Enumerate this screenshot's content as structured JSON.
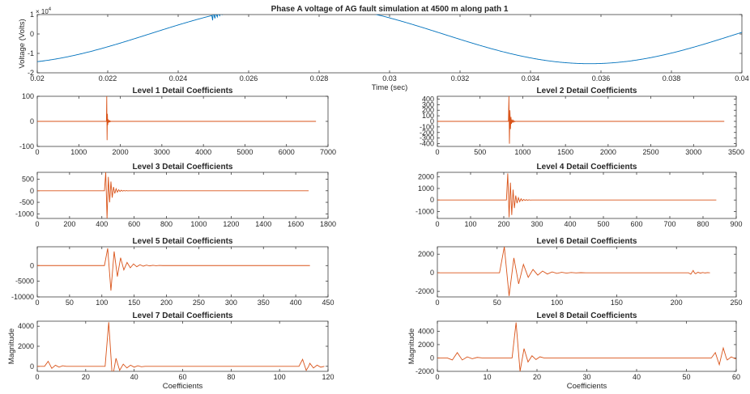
{
  "colors": {
    "voltage": "#0072BD",
    "detail": "#D95319",
    "axis": "#262626"
  },
  "chart_data": [
    {
      "type": "line",
      "title": "Phase A voltage of AG fault simulation at 4500 m along path 1",
      "xlabel": "Time (sec)",
      "ylabel": "Voltage (Volts)",
      "multiplier": "× 10",
      "multiplier_exp": "4",
      "xlim": [
        0.02,
        0.04
      ],
      "ylim": [
        -2,
        1
      ],
      "x_ticks": [
        0.02,
        0.022,
        0.024,
        0.026,
        0.028,
        0.03,
        0.032,
        0.034,
        0.036,
        0.038,
        0.04
      ],
      "x_tick_labels": [
        "0.02",
        "0.022",
        "0.024",
        "0.026",
        "0.028",
        "0.03",
        "0.032",
        "0.034",
        "0.036",
        "0.038",
        "0.04"
      ],
      "y_ticks": [
        -2,
        -1,
        0,
        1
      ],
      "y_tick_labels": [
        "-2",
        "-1",
        "0",
        "1"
      ],
      "wave": {
        "amplitude": 1.53,
        "x_peak": 0.02735,
        "period": 0.01667
      },
      "transient": {
        "x_start": 0.02497,
        "x_end": 0.02575,
        "amplitude": 0.35,
        "frequency": 15000
      },
      "color": "#0072BD"
    },
    {
      "type": "line",
      "title": "Level 1 Detail Coefficients",
      "xlabel": "",
      "ylabel": "",
      "xlim": [
        0,
        7000
      ],
      "ylim": [
        -100,
        100
      ],
      "x_ticks": [
        0,
        1000,
        2000,
        3000,
        4000,
        5000,
        6000,
        7000
      ],
      "x_tick_labels": [
        "0",
        "1000",
        "2000",
        "3000",
        "4000",
        "5000",
        "6000",
        "7000"
      ],
      "y_ticks": [
        -100,
        0,
        100
      ],
      "y_tick_labels": [
        "-100",
        "0",
        "100"
      ],
      "length": 6710,
      "bursts": [
        {
          "x0": 1665,
          "peaks": [
            100,
            -75,
            30,
            -15
          ],
          "decay": 3,
          "period": 8
        }
      ],
      "color": "#D95319"
    },
    {
      "type": "line",
      "title": "Level 2 Detail Coefficients",
      "xlabel": "",
      "ylabel": "",
      "xlim": [
        0,
        3500
      ],
      "ylim": [
        -450,
        450
      ],
      "x_ticks": [
        0,
        500,
        1000,
        1500,
        2000,
        2500,
        3000,
        3500
      ],
      "x_tick_labels": [
        "0",
        "500",
        "1000",
        "1500",
        "2000",
        "2500",
        "3000",
        "3500"
      ],
      "y_ticks": [
        -400,
        -300,
        -200,
        -100,
        0,
        100,
        200,
        300,
        400
      ],
      "y_tick_labels": [
        "-400",
        "-300",
        "-200",
        "-100",
        "0",
        "100",
        "200",
        "300",
        "400"
      ],
      "length": 3360,
      "bursts": [
        {
          "x0": 832,
          "peaks": [
            450,
            -400,
            200,
            -140,
            80
          ],
          "decay": 4,
          "period": 6
        }
      ],
      "color": "#D95319"
    },
    {
      "type": "line",
      "title": "Level 3 Detail Coefficients",
      "xlabel": "",
      "ylabel": "",
      "xlim": [
        0,
        1800
      ],
      "ylim": [
        -1200,
        800
      ],
      "x_ticks": [
        0,
        200,
        400,
        600,
        800,
        1000,
        1200,
        1400,
        1600,
        1800
      ],
      "x_tick_labels": [
        "0",
        "200",
        "400",
        "600",
        "800",
        "1000",
        "1200",
        "1400",
        "1600",
        "1800"
      ],
      "y_ticks": [
        -1000,
        -500,
        0,
        500
      ],
      "y_tick_labels": [
        "-1000",
        "-500",
        "0",
        "500"
      ],
      "length": 1680,
      "bursts": [
        {
          "x0": 416,
          "peaks": [
            800,
            -1200,
            600,
            -500,
            400,
            -300
          ],
          "decay": 25,
          "period": 8
        }
      ],
      "color": "#D95319"
    },
    {
      "type": "line",
      "title": "Level 4 Detail Coefficients",
      "xlabel": "",
      "ylabel": "",
      "xlim": [
        0,
        900
      ],
      "ylim": [
        -1600,
        2400
      ],
      "x_ticks": [
        0,
        100,
        200,
        300,
        400,
        500,
        600,
        700,
        800,
        900
      ],
      "x_tick_labels": [
        "0",
        "100",
        "200",
        "300",
        "400",
        "500",
        "600",
        "700",
        "800",
        "900"
      ],
      "y_ticks": [
        -1000,
        0,
        1000,
        2000
      ],
      "y_tick_labels": [
        "-1000",
        "0",
        "1000",
        "2000"
      ],
      "length": 840,
      "bursts": [
        {
          "x0": 208,
          "peaks": [
            2300,
            -1500,
            1500,
            -1300,
            900,
            -700
          ],
          "decay": 16,
          "period": 4
        }
      ],
      "color": "#D95319"
    },
    {
      "type": "line",
      "title": "Level 5 Detail Coefficients",
      "xlabel": "",
      "ylabel": "",
      "xlim": [
        0,
        450
      ],
      "ylim": [
        -10000,
        6000
      ],
      "x_ticks": [
        0,
        50,
        100,
        150,
        200,
        250,
        300,
        350,
        400,
        450
      ],
      "x_tick_labels": [
        "0",
        "50",
        "100",
        "150",
        "200",
        "250",
        "300",
        "350",
        "400",
        "450"
      ],
      "y_ticks": [
        -10000,
        -5000,
        0
      ],
      "y_tick_labels": [
        "-10000",
        "-5000",
        "0"
      ],
      "length": 422,
      "bursts": [
        {
          "x0": 104,
          "peaks": [
            5500,
            -8000,
            4500,
            -3500,
            2500
          ],
          "decay": 14,
          "period": 5
        }
      ],
      "color": "#D95319"
    },
    {
      "type": "line",
      "title": "Level 6 Detail Coefficients",
      "xlabel": "",
      "ylabel": "",
      "xlim": [
        0,
        250
      ],
      "ylim": [
        -2600,
        2800
      ],
      "x_ticks": [
        0,
        50,
        100,
        150,
        200,
        250
      ],
      "x_tick_labels": [
        "0",
        "50",
        "100",
        "150",
        "200",
        "250"
      ],
      "y_ticks": [
        -2000,
        0,
        2000
      ],
      "y_tick_labels": [
        "-2000",
        "0",
        "2000"
      ],
      "length": 215,
      "bursts": [
        {
          "x0": 52,
          "peaks": [
            2800,
            -2500,
            1600,
            -1200,
            900
          ],
          "decay": 8,
          "period": 4
        },
        {
          "x0": 210,
          "peaks": [
            -150,
            250,
            -100
          ],
          "decay": 2,
          "period": 2
        }
      ],
      "color": "#D95319"
    },
    {
      "type": "line",
      "title": "Level 7 Detail Coefficients",
      "xlabel": "Coefficients",
      "ylabel": "Magnitude",
      "xlim": [
        0,
        120
      ],
      "ylim": [
        -500,
        4500
      ],
      "x_ticks": [
        0,
        20,
        40,
        60,
        80,
        100,
        120
      ],
      "x_tick_labels": [
        "0",
        "20",
        "40",
        "60",
        "80",
        "100",
        "120"
      ],
      "y_ticks": [
        0,
        2000,
        4000
      ],
      "y_tick_labels": [
        "0",
        "2000",
        "4000"
      ],
      "length": 112,
      "bursts": [
        {
          "x0": 3,
          "peaks": [
            500,
            -200
          ],
          "decay": 1,
          "period": 1.5
        },
        {
          "x0": 28,
          "peaks": [
            4400,
            -1200,
            800,
            -400
          ],
          "decay": 2,
          "period": 1.5
        },
        {
          "x0": 108,
          "peaks": [
            700,
            -400,
            300
          ],
          "decay": 1,
          "period": 1.5
        }
      ],
      "color": "#D95319"
    },
    {
      "type": "line",
      "title": "Level 8 Detail Coefficients",
      "xlabel": "Coefficients",
      "ylabel": "Magnitude",
      "xlim": [
        0,
        60
      ],
      "ylim": [
        -2000,
        5500
      ],
      "x_ticks": [
        0,
        10,
        20,
        30,
        40,
        50,
        60
      ],
      "x_tick_labels": [
        "0",
        "10",
        "20",
        "30",
        "40",
        "50",
        "60"
      ],
      "y_ticks": [
        -2000,
        0,
        2000,
        4000
      ],
      "y_tick_labels": [
        "-2000",
        "0",
        "2000",
        "4000"
      ],
      "length": 58,
      "bursts": [
        {
          "x0": 2,
          "peaks": [
            -300,
            800,
            -300
          ],
          "decay": 1,
          "period": 1
        },
        {
          "x0": 15,
          "peaks": [
            5300,
            -2000,
            1400,
            -600
          ],
          "decay": 1,
          "period": 0.8
        },
        {
          "x0": 55,
          "peaks": [
            800,
            -1000,
            1500,
            -300
          ],
          "decay": 1,
          "period": 0.8
        }
      ],
      "color": "#D95319"
    }
  ]
}
